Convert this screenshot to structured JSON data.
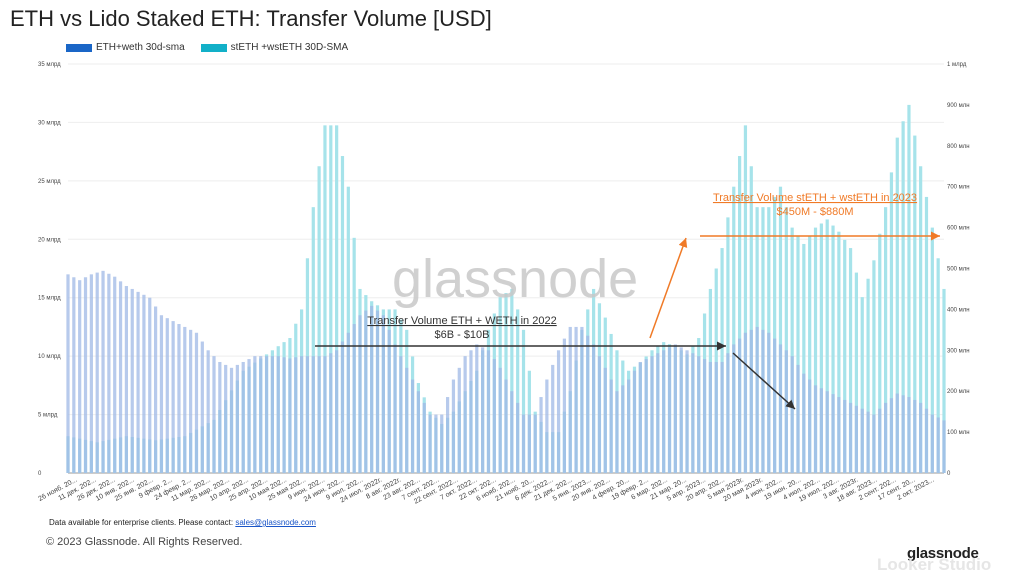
{
  "title": "ETH vs Lido Staked ETH: Transfer Volume [USD]",
  "colors": {
    "eth": "#1a66c7",
    "steth": "#12b0c8",
    "eth_fill": "#9fb8e6",
    "steth_fill": "#a6e3ea",
    "orange": "#f07a27",
    "dark": "#333333"
  },
  "legend": [
    {
      "name": "ETH+weth 30d-sma",
      "color": "#1a66c7"
    },
    {
      "name": "stETH +wstETH 30D-SMA",
      "color": "#12b0c8"
    }
  ],
  "watermark": "glassnode",
  "footer": {
    "note": "Data available for enterprise clients. Please contact:",
    "email": "sales@glassnode.com",
    "copyright": "© 2023 Glassnode. All Rights Reserved.",
    "brand": "glassnode",
    "studio": "Looker Studio"
  },
  "annotations": {
    "eth_2022": {
      "title": "Transfer Volume ETH + WETH in 2022",
      "range": "$6B - $10B"
    },
    "steth_2023": {
      "title": "Transfer Volume stETH + wstETH in 2023",
      "range": "$450M - $880M"
    }
  },
  "chart_data": {
    "type": "area",
    "x_tick_labels": [
      "26 нояб. 20...",
      "11 дек. 202...",
      "26 дек. 202...",
      "10 янв. 202...",
      "25 янв. 202...",
      "9 февр. 2...",
      "24 февр. 2...",
      "11 мар. 202...",
      "26 мар. 202...",
      "10 апр. 202...",
      "25 апр. 202...",
      "10 мая 202...",
      "25 мая 202...",
      "9 июн. 202...",
      "24 июн. 202...",
      "9 июл. 202...",
      "24 июл. 2022г.",
      "8 авг. 2022г.",
      "23 авг. 202...",
      "7 сент. 202...",
      "22 сент. 2022...",
      "7 окт. 2022...",
      "22 окт. 202...",
      "6 нояб. 202...",
      "21 нояб. 20...",
      "6 дек. 2022...",
      "21 дек. 202...",
      "5 янв. 2023...",
      "20 янв. 202...",
      "4 февр. 20...",
      "19 февр. 2...",
      "6 мар. 202...",
      "21 мар. 20...",
      "5 апр. 2023...",
      "20 апр. 202...",
      "5 мая 2023г.",
      "20 мая 2023г.",
      "4 июн. 202...",
      "19 июн. 20...",
      "4 июл. 202...",
      "19 июл. 202...",
      "3 авг. 2023г.",
      "18 авг. 2023...",
      "2 сент. 202...",
      "17 сент. 20...",
      "2 окт. 2023..."
    ],
    "y_left": {
      "ticks": [
        "0",
        "5 млрд",
        "10 млрд",
        "15 млрд",
        "20 млрд",
        "25 млрд",
        "30 млрд",
        "35 млрд"
      ],
      "unit": "USD",
      "min": 0,
      "max": 35
    },
    "y_right": {
      "ticks": [
        "0",
        "100 млн",
        "200 млн",
        "300 млн",
        "400 млн",
        "500 млн",
        "600 млн",
        "700 млн",
        "800 млн",
        "900 млн",
        "1 млрд"
      ],
      "unit": "USD",
      "min": 0,
      "max": 1000
    },
    "series": [
      {
        "name": "ETH+weth 30d-sma",
        "axis": "left",
        "unit": "billion USD",
        "x_index": [
          0,
          2,
          4,
          6,
          8,
          10,
          12,
          14,
          16,
          18,
          20,
          22,
          24,
          26,
          28,
          30,
          32,
          34,
          36,
          38,
          40,
          42,
          44,
          46,
          48,
          50,
          52,
          54,
          56,
          58,
          60,
          62,
          64,
          66,
          68,
          70,
          72,
          74,
          76,
          78,
          80,
          82,
          84,
          86,
          88,
          90,
          92,
          94,
          96,
          98,
          100,
          102,
          104,
          106,
          108,
          110,
          112,
          114,
          116,
          118,
          120,
          122,
          124,
          126,
          128,
          130,
          132,
          134,
          136,
          138,
          140,
          142,
          144,
          146,
          148,
          150
        ],
        "values": [
          17,
          16.5,
          17,
          17.3,
          16.8,
          16,
          15.5,
          15,
          13.5,
          13,
          12.5,
          12,
          10.5,
          9.5,
          9,
          9.5,
          10,
          10,
          10,
          9.8,
          10,
          10,
          10,
          10.5,
          12,
          13.5,
          14.3,
          13.5,
          11,
          9,
          7,
          5,
          5,
          8,
          10,
          11,
          10.5,
          9,
          7,
          5,
          5,
          8,
          10.5,
          12.5,
          12.5,
          11,
          9,
          7,
          8,
          9.5,
          10,
          10.5,
          11,
          10.5,
          10,
          9.5,
          9.5,
          11,
          12,
          12.5,
          12,
          11,
          10,
          8.5,
          7.5,
          7,
          6.5,
          6,
          5.5,
          5,
          6,
          6.8,
          6.5,
          6,
          5,
          4.5
        ]
      },
      {
        "name": "stETH +wstETH 30D-SMA",
        "axis": "right",
        "unit": "million USD",
        "x_index": [
          0,
          5,
          10,
          15,
          20,
          25,
          30,
          35,
          38,
          40,
          42,
          44,
          46,
          48,
          50,
          52,
          54,
          56,
          58,
          60,
          62,
          64,
          66,
          68,
          70,
          72,
          74,
          76,
          78,
          80,
          82,
          84,
          86,
          88,
          90,
          92,
          94,
          96,
          98,
          100,
          102,
          104,
          106,
          108,
          110,
          112,
          114,
          116,
          118,
          120,
          122,
          124,
          126,
          128,
          130,
          132,
          134,
          136,
          138,
          140,
          142,
          144,
          146,
          148,
          150
        ],
        "values": [
          90,
          75,
          90,
          80,
          90,
          130,
          250,
          300,
          330,
          400,
          650,
          850,
          850,
          700,
          450,
          420,
          400,
          400,
          350,
          220,
          150,
          120,
          150,
          200,
          250,
          350,
          430,
          450,
          350,
          150,
          100,
          100,
          200,
          350,
          450,
          380,
          300,
          250,
          270,
          300,
          320,
          310,
          290,
          330,
          450,
          550,
          700,
          850,
          650,
          650,
          700,
          600,
          560,
          600,
          620,
          590,
          550,
          430,
          520,
          650,
          820,
          900,
          750,
          600,
          450
        ]
      }
    ]
  }
}
